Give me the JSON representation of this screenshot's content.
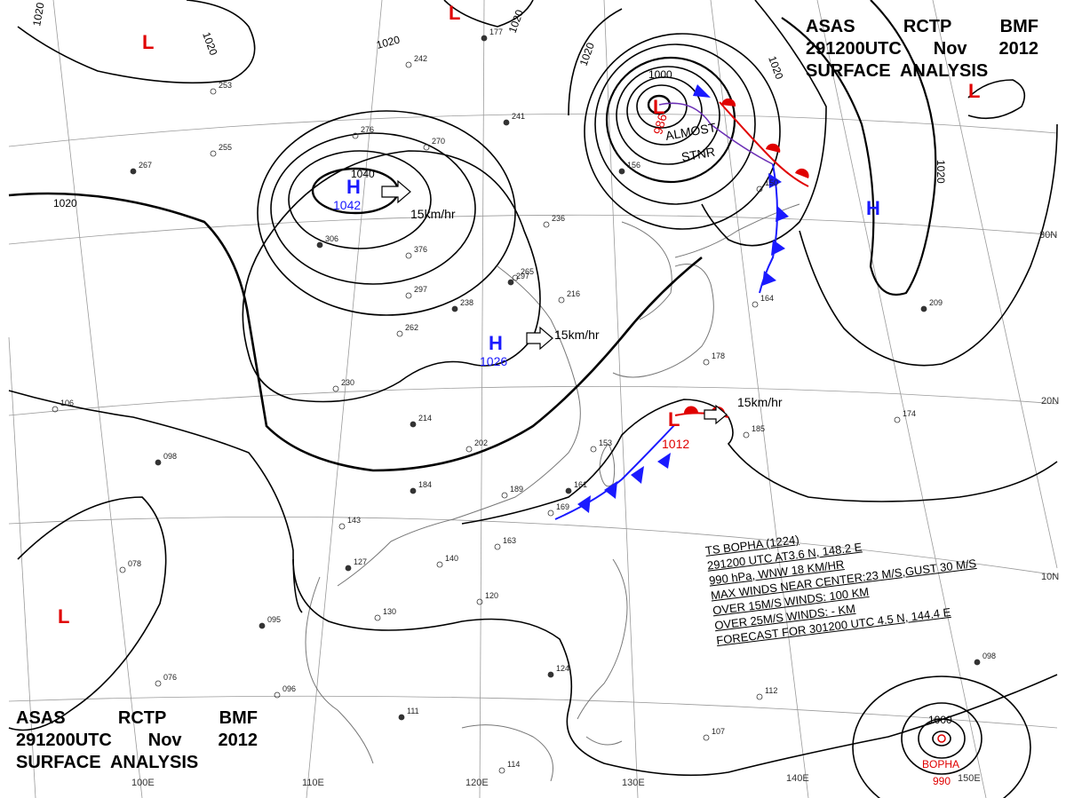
{
  "titles": {
    "top_right": {
      "row1": [
        "ASAS",
        "RCTP",
        "BMF"
      ],
      "row2": [
        "291200UTC",
        "Nov",
        "2012"
      ],
      "row3": "SURFACE  ANALYSIS"
    },
    "bottom_left": {
      "row1": [
        "ASAS",
        "RCTP",
        "BMF"
      ],
      "row2": [
        "291200UTC",
        "Nov",
        "2012"
      ],
      "row3": "SURFACE  ANALYSIS"
    }
  },
  "grid_labels": {
    "lat": [
      "30N",
      "20N",
      "10N"
    ],
    "lon": [
      "100E",
      "110E",
      "120E",
      "130E",
      "140E",
      "150E"
    ]
  },
  "pressure_centers": [
    {
      "type": "H",
      "value": "1042"
    },
    {
      "type": "H",
      "value": "1026"
    },
    {
      "type": "H",
      "value": ""
    },
    {
      "type": "L",
      "value": "986"
    },
    {
      "type": "L",
      "value": "1012"
    },
    {
      "type": "L",
      "value": ""
    },
    {
      "type": "L",
      "value": ""
    },
    {
      "type": "L",
      "value": ""
    },
    {
      "type": "L",
      "value": ""
    }
  ],
  "isobar_labels": [
    "1020",
    "1020",
    "1020",
    "1020",
    "1020",
    "1020",
    "1020",
    "1040",
    "1000",
    "1000"
  ],
  "movements": [
    "15km/hr",
    "15km/hr",
    "15km/hr"
  ],
  "annotations": {
    "stationary": [
      "ALMOST",
      "STNR"
    ],
    "typhoon_name": "BOPHA",
    "typhoon_pressure": "990"
  },
  "storm_info": {
    "line1": "TS  BOPHA  (1224)",
    "line2": "291200  UTC   AT3.6 N, 148.2 E",
    "line3": "990  hPa, WNW  18 KM/HR",
    "line4": "MAX WINDS NEAR CENTER:23 M/S,GUST 30 M/S",
    "line5": "OVER 15M/S WINDS: 100 KM",
    "line6": "OVER 25M/S WINDS:  - KM",
    "line7": "FORECAST FOR 301200 UTC 4.5 N, 144.4 E"
  },
  "station_obs": [
    "267",
    "253",
    "242",
    "177",
    "276",
    "270",
    "241",
    "297",
    "236",
    "306",
    "376",
    "255",
    "297",
    "265",
    "216",
    "238",
    "262",
    "230",
    "214",
    "202",
    "189",
    "184",
    "169",
    "153",
    "161",
    "143",
    "163",
    "127",
    "140",
    "130",
    "095",
    "078",
    "106",
    "098",
    "076",
    "096",
    "111",
    "114",
    "120",
    "124",
    "107",
    "112",
    "098",
    "185",
    "174",
    "209",
    "164",
    "178",
    "156",
    "150"
  ],
  "colors": {
    "high": "#1a1aff",
    "low": "#e00000",
    "isobar": "#000000",
    "cold_front": "#1a1aff",
    "warm_front": "#e00000"
  }
}
